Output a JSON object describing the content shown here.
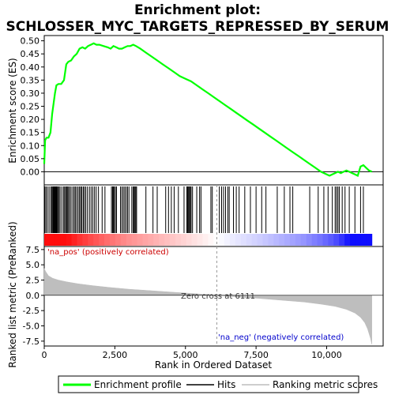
{
  "chart_data": {
    "type": "line",
    "title": "Enrichment plot:",
    "subtitle": "SCHLOSSER_MYC_TARGETS_REPRESSED_BY_SERUM",
    "top_panel": {
      "ylabel": "Enrichment score (ES)",
      "ylim": [
        -0.05,
        0.52
      ],
      "yticks": [
        "0.00",
        "0.05",
        "0.10",
        "0.15",
        "0.20",
        "0.25",
        "0.30",
        "0.35",
        "0.40",
        "0.45",
        "0.50"
      ],
      "ytick_values": [
        0,
        0.05,
        0.1,
        0.15,
        0.2,
        0.25,
        0.3,
        0.35,
        0.4,
        0.45,
        0.5
      ],
      "series": [
        {
          "name": "Enrichment profile",
          "color": "#00ff00",
          "x": [
            0,
            30,
            80,
            150,
            220,
            280,
            330,
            380,
            430,
            500,
            600,
            700,
            780,
            850,
            950,
            1050,
            1150,
            1250,
            1350,
            1450,
            1550,
            1650,
            1750,
            1850,
            1950,
            2100,
            2250,
            2350,
            2450,
            2550,
            2650,
            2750,
            2850,
            2950,
            3050,
            3150,
            3250,
            3400,
            3600,
            3800,
            4000,
            4200,
            4400,
            4600,
            4800,
            5000,
            5200,
            5400,
            5600,
            5800,
            6000,
            6200,
            6400,
            6600,
            6800,
            7000,
            7200,
            7400,
            7600,
            7800,
            8000,
            8200,
            8400,
            8600,
            8800,
            9000,
            9200,
            9400,
            9600,
            9800,
            10000,
            10100,
            10200,
            10300,
            10400,
            10500,
            10600,
            10700,
            10800,
            10900,
            11000,
            11100,
            11200,
            11300,
            11400,
            11500,
            11600
          ],
          "y": [
            0.03,
            0.12,
            0.13,
            0.13,
            0.15,
            0.22,
            0.26,
            0.3,
            0.33,
            0.335,
            0.335,
            0.35,
            0.41,
            0.42,
            0.425,
            0.44,
            0.45,
            0.47,
            0.475,
            0.47,
            0.48,
            0.485,
            0.49,
            0.485,
            0.485,
            0.48,
            0.475,
            0.47,
            0.48,
            0.475,
            0.47,
            0.47,
            0.475,
            0.48,
            0.48,
            0.485,
            0.48,
            0.47,
            0.455,
            0.44,
            0.425,
            0.41,
            0.395,
            0.38,
            0.365,
            0.355,
            0.345,
            0.33,
            0.315,
            0.3,
            0.285,
            0.27,
            0.255,
            0.24,
            0.225,
            0.21,
            0.195,
            0.18,
            0.165,
            0.15,
            0.135,
            0.12,
            0.105,
            0.09,
            0.075,
            0.06,
            0.045,
            0.03,
            0.015,
            0.0,
            -0.01,
            -0.015,
            -0.01,
            -0.005,
            0.0,
            -0.005,
            0.0,
            0.005,
            0.0,
            -0.005,
            -0.01,
            -0.015,
            0.02,
            0.025,
            0.015,
            0.005,
            0.0
          ]
        }
      ]
    },
    "hits": [
      20,
      60,
      110,
      170,
      230,
      270,
      300,
      320,
      340,
      360,
      380,
      400,
      420,
      440,
      460,
      480,
      520,
      560,
      620,
      680,
      720,
      760,
      790,
      820,
      860,
      900,
      950,
      1010,
      1060,
      1100,
      1150,
      1200,
      1250,
      1290,
      1330,
      1380,
      1420,
      1470,
      1530,
      1600,
      1660,
      1720,
      1780,
      1840,
      1920,
      2050,
      2150,
      2380,
      2420,
      2450,
      2480,
      2520,
      2560,
      2700,
      2750,
      2800,
      2850,
      2900,
      2950,
      3000,
      3100,
      3150,
      3180,
      3210,
      3240,
      3270,
      3600,
      3850,
      4000,
      4300,
      4400,
      4500,
      4600,
      4750,
      4950,
      5050,
      5080,
      5110,
      5140,
      5170,
      5200,
      5250,
      5400,
      5500,
      5550,
      5900,
      5950,
      6200,
      6280,
      6350,
      6420,
      6500,
      6550,
      6700,
      6800,
      6900,
      7100,
      7300,
      7500,
      7700,
      7850,
      8250,
      8500,
      8700,
      8800,
      9400,
      9700,
      9900,
      10050,
      10200,
      10300,
      10350,
      10400,
      10450,
      10550,
      10650,
      10800,
      11000,
      11200,
      11300
    ],
    "bottom_panel": {
      "ylabel": "Ranked list metric (PreRanked)",
      "xlabel": "Rank in Ordered Dataset",
      "ylim": [
        -8.3,
        8.0
      ],
      "yticks": [
        "-7.5",
        "-5.0",
        "-2.5",
        "0.0",
        "2.5",
        "5.0",
        "7.5"
      ],
      "ytick_values": [
        -7.5,
        -5.0,
        -2.5,
        0.0,
        2.5,
        5.0,
        7.5
      ],
      "xlim": [
        0,
        12000
      ],
      "xticks": [
        "0",
        "2,500",
        "5,000",
        "7,500",
        "10,000"
      ],
      "xtick_values": [
        0,
        2500,
        5000,
        7500,
        10000
      ],
      "metric_x": [
        0,
        50,
        150,
        300,
        500,
        800,
        1200,
        1700,
        2300,
        3000,
        3800,
        4600,
        5400,
        6111,
        6800,
        7600,
        8400,
        9200,
        9800,
        10300,
        10700,
        11000,
        11200,
        11350,
        11450,
        11550,
        11600
      ],
      "metric_y": [
        4.4,
        3.9,
        3.2,
        2.8,
        2.5,
        2.2,
        1.9,
        1.6,
        1.3,
        1.0,
        0.75,
        0.5,
        0.25,
        0.0,
        -0.25,
        -0.5,
        -0.8,
        -1.1,
        -1.45,
        -1.8,
        -2.3,
        -2.9,
        -3.6,
        -4.5,
        -5.5,
        -7.0,
        -8.0
      ],
      "pos_label": "'na_pos' (positively correlated)",
      "neg_label": "'na_neg' (negatively correlated)",
      "zero_cross_label": "Zero cross at 6111",
      "zero_cross": 6111,
      "n_genes": 11600
    },
    "legend": {
      "position": "bottom",
      "items": [
        {
          "label": "Enrichment profile",
          "color": "#00ff00"
        },
        {
          "label": "Hits",
          "color": "#000000"
        },
        {
          "label": "Ranking metric scores",
          "color": "#bebebe"
        }
      ]
    }
  }
}
